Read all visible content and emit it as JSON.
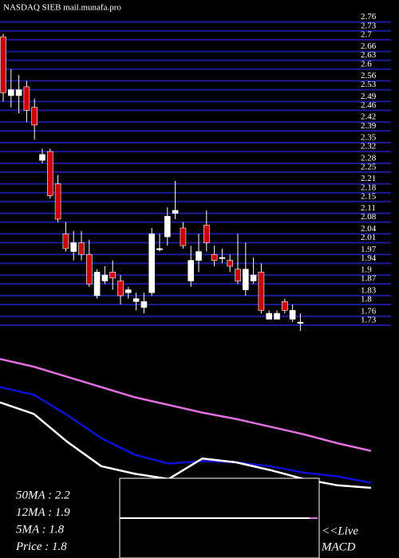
{
  "chart_data": {
    "type": "candlestick",
    "title": "NASDAQ SIEB mail.munafa.pro",
    "ylim": [
      1.697,
      2.835
    ],
    "yticks": [
      2.76,
      2.73,
      2.7,
      2.66,
      2.63,
      2.6,
      2.56,
      2.53,
      2.49,
      2.46,
      2.42,
      2.39,
      2.35,
      2.32,
      2.28,
      2.25,
      2.21,
      2.18,
      2.15,
      2.11,
      2.08,
      2.04,
      2.01,
      1.97,
      1.94,
      1.9,
      1.87,
      1.83,
      1.8,
      1.76,
      1.73
    ],
    "grid": true,
    "up_color": "#ffffff",
    "down_color": "#cc0000",
    "grid_color": "#1c1c9a",
    "open": [
      2.71,
      2.51,
      2.51,
      2.54,
      2.47,
      2.29,
      2.32,
      2.21,
      2.04,
      1.98,
      2.01,
      1.97,
      1.83,
      1.88,
      1.91,
      1.88,
      1.84,
      1.81,
      1.79,
      1.84,
      1.99,
      2.03,
      2.11,
      2.06,
      1.88,
      1.95,
      2.07,
      1.97,
      1.96,
      1.95,
      1.92,
      1.85,
      1.88,
      1.91,
      1.75,
      1.75,
      1.81,
      1.75,
      1.74
    ],
    "close": [
      2.52,
      2.53,
      2.53,
      2.46,
      2.41,
      2.31,
      2.17,
      2.09,
      1.99,
      2.01,
      1.97,
      1.87,
      1.91,
      1.9,
      1.89,
      1.83,
      1.85,
      1.82,
      1.81,
      2.04,
      1.99,
      2.1,
      2.12,
      2.0,
      1.95,
      1.98,
      2.01,
      1.95,
      1.96,
      1.93,
      1.88,
      1.92,
      1.9,
      1.78,
      1.77,
      1.77,
      1.78,
      1.78,
      1.74
    ],
    "high": [
      2.72,
      2.6,
      2.58,
      2.56,
      2.5,
      2.33,
      2.33,
      2.24,
      2.08,
      2.05,
      2.05,
      2.02,
      1.92,
      1.93,
      1.95,
      1.9,
      1.86,
      1.84,
      1.84,
      2.06,
      2.04,
      2.13,
      2.22,
      2.08,
      2.0,
      2.04,
      2.12,
      2.0,
      1.99,
      1.97,
      2.04,
      2.01,
      1.96,
      1.94,
      1.78,
      1.78,
      1.82,
      1.8,
      1.77
    ],
    "low": [
      2.49,
      2.47,
      2.45,
      2.42,
      2.36,
      2.28,
      2.16,
      2.08,
      1.98,
      1.95,
      1.95,
      1.86,
      1.82,
      1.87,
      1.85,
      1.8,
      1.82,
      1.78,
      1.77,
      1.83,
      1.98,
      2.0,
      2.09,
      1.99,
      1.86,
      1.91,
      1.98,
      1.93,
      1.94,
      1.91,
      1.87,
      1.83,
      1.87,
      1.77,
      1.75,
      1.75,
      1.77,
      1.74,
      1.71
    ],
    "ma_ylim": [
      1.6,
      2.85
    ],
    "ma_lines": [
      {
        "name": "50MA",
        "color": "#e070e0",
        "values": [
          2.66,
          2.6,
          2.52,
          2.44,
          2.36,
          2.3,
          2.24,
          2.19,
          2.13,
          2.07,
          2.0,
          1.94
        ]
      },
      {
        "name": "12MA",
        "color": "#1010d0",
        "values": [
          2.44,
          2.38,
          2.22,
          2.04,
          1.91,
          1.84,
          1.86,
          1.85,
          1.82,
          1.77,
          1.74,
          1.69
        ]
      },
      {
        "name": "5MA",
        "color": "#ffffff",
        "values": [
          2.32,
          2.23,
          2.01,
          1.82,
          1.76,
          1.72,
          1.88,
          1.85,
          1.79,
          1.72,
          1.67,
          1.65
        ]
      }
    ],
    "legend": [
      {
        "label": "50MA : 2.2"
      },
      {
        "label": "12MA : 1.9"
      },
      {
        "label": "5MA : 1.8"
      },
      {
        "label": "Price   : 1.8"
      }
    ],
    "macd_label": [
      "<<Live",
      "MACD"
    ]
  }
}
